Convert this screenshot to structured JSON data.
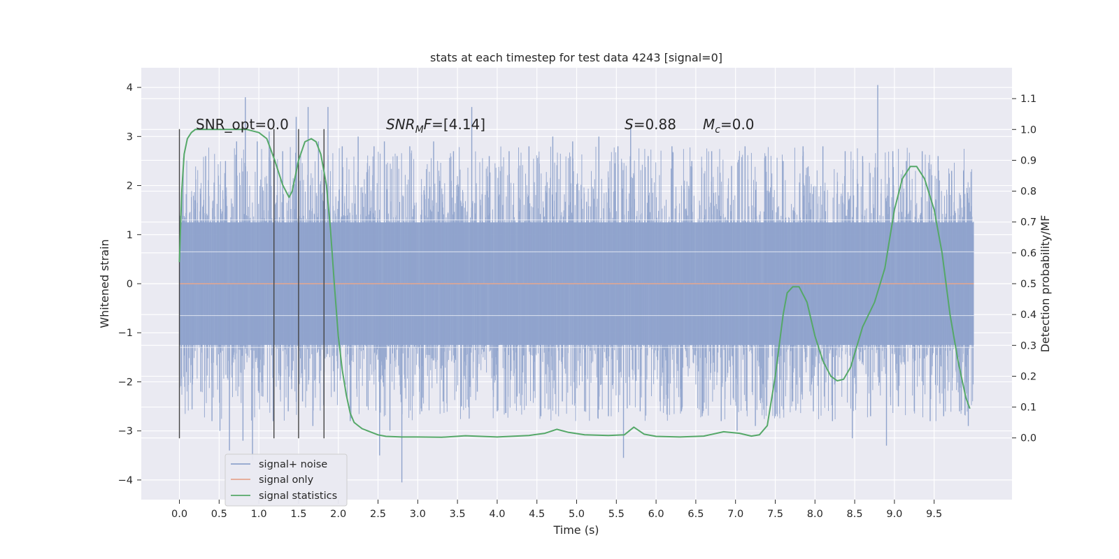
{
  "chart_data": {
    "type": "line",
    "title": "stats at each timestep for test data 4243 [signal=0]",
    "xlabel": "Time (s)",
    "ylabel": "Whitened strain",
    "y2label": "Detection probability/MF",
    "xlim": [
      -0.48,
      10.48
    ],
    "ylim": [
      -4.4,
      4.4
    ],
    "y2lim": [
      -0.2,
      1.2
    ],
    "x_ticks": [
      0.0,
      0.5,
      1.0,
      1.5,
      2.0,
      2.5,
      3.0,
      3.5,
      4.0,
      4.5,
      5.0,
      5.5,
      6.0,
      6.5,
      7.0,
      7.5,
      8.0,
      8.5,
      9.0,
      9.5
    ],
    "x_tick_labels": [
      "0.0",
      "0.5",
      "1.0",
      "1.5",
      "2.0",
      "2.5",
      "3.0",
      "3.5",
      "4.0",
      "4.5",
      "5.0",
      "5.5",
      "6.0",
      "6.5",
      "7.0",
      "7.5",
      "8.0",
      "8.5",
      "9.0",
      "9.5"
    ],
    "y_ticks": [
      -4,
      -3,
      -2,
      -1,
      0,
      1,
      2,
      3,
      4
    ],
    "y_tick_labels": [
      "−4",
      "−3",
      "−2",
      "−1",
      "0",
      "1",
      "2",
      "3",
      "4"
    ],
    "y2_ticks": [
      0.0,
      0.1,
      0.2,
      0.3,
      0.4,
      0.5,
      0.6,
      0.7,
      0.8,
      0.9,
      1.0,
      1.1
    ],
    "y2_tick_labels": [
      "0.0",
      "0.1",
      "0.2",
      "0.3",
      "0.4",
      "0.5",
      "0.6",
      "0.7",
      "0.8",
      "0.9",
      "1.0",
      "1.1"
    ],
    "grid": true,
    "legend_position": "lower-left",
    "annotations": {
      "snr_opt": "SNR_opt=0.0",
      "snr_mf_base": "SNR",
      "snr_mf_sub": "M",
      "snr_mf_tail": "F",
      "snr_mf_value": "=[4.14]",
      "s_sym": "S",
      "s_value": "=0.88",
      "mc_sym": "M",
      "mc_sub": "c",
      "mc_value": "=0.0"
    },
    "vertical_markers_x": [
      0.0,
      1.19,
      1.5,
      1.82
    ],
    "vertical_markers_yrange": [
      -3.15,
      3.15
    ],
    "series": [
      {
        "name": "signal+ noise",
        "axis": "left",
        "style": "noise-envelope",
        "color": "#8fa3cc",
        "x_range": [
          0.0,
          10.0
        ],
        "band": [
          -1.25,
          1.25
        ],
        "peaks": [
          {
            "x": 0.05,
            "v": 1.3
          },
          {
            "x": 0.09,
            "v": -1.8
          },
          {
            "x": 0.2,
            "v": 1.7
          },
          {
            "x": 0.27,
            "v": -2.2
          },
          {
            "x": 0.33,
            "v": 2.6
          },
          {
            "x": 0.41,
            "v": -2.8
          },
          {
            "x": 0.49,
            "v": 2.2
          },
          {
            "x": 0.51,
            "v": -3.0
          },
          {
            "x": 0.58,
            "v": 2.5
          },
          {
            "x": 0.63,
            "v": -3.4
          },
          {
            "x": 0.72,
            "v": 2.9
          },
          {
            "x": 0.8,
            "v": -3.2
          },
          {
            "x": 0.83,
            "v": 3.8
          },
          {
            "x": 0.92,
            "v": -3.6
          },
          {
            "x": 0.98,
            "v": 2.9
          },
          {
            "x": 1.05,
            "v": -2.3
          },
          {
            "x": 1.13,
            "v": 3.1
          },
          {
            "x": 1.18,
            "v": -2.8
          },
          {
            "x": 1.3,
            "v": 2.7
          },
          {
            "x": 1.37,
            "v": -2.6
          },
          {
            "x": 1.47,
            "v": 3.4
          },
          {
            "x": 1.55,
            "v": -2.4
          },
          {
            "x": 1.62,
            "v": 3.6
          },
          {
            "x": 1.68,
            "v": -2.9
          },
          {
            "x": 1.75,
            "v": 2.9
          },
          {
            "x": 1.82,
            "v": -2.5
          },
          {
            "x": 1.87,
            "v": 3.6
          },
          {
            "x": 1.95,
            "v": -2.2
          },
          {
            "x": 2.05,
            "v": 2.8
          },
          {
            "x": 2.15,
            "v": -2.8
          },
          {
            "x": 2.25,
            "v": 3.0
          },
          {
            "x": 2.36,
            "v": -2.5
          },
          {
            "x": 2.45,
            "v": 2.8
          },
          {
            "x": 2.52,
            "v": -3.5
          },
          {
            "x": 2.58,
            "v": 2.9
          },
          {
            "x": 2.65,
            "v": -3.0
          },
          {
            "x": 2.74,
            "v": 2.6
          },
          {
            "x": 2.8,
            "v": -4.05
          },
          {
            "x": 2.9,
            "v": 2.8
          },
          {
            "x": 3.05,
            "v": -2.6
          },
          {
            "x": 3.2,
            "v": 2.9
          },
          {
            "x": 3.32,
            "v": -2.4
          },
          {
            "x": 3.45,
            "v": 2.7
          },
          {
            "x": 3.55,
            "v": -2.5
          },
          {
            "x": 3.68,
            "v": 3.6
          },
          {
            "x": 3.75,
            "v": -2.2
          },
          {
            "x": 3.9,
            "v": 2.6
          },
          {
            "x": 4.0,
            "v": -2.6
          },
          {
            "x": 4.15,
            "v": 2.7
          },
          {
            "x": 4.25,
            "v": -2.3
          },
          {
            "x": 4.4,
            "v": 2.8
          },
          {
            "x": 4.55,
            "v": -2.7
          },
          {
            "x": 4.7,
            "v": 3.0
          },
          {
            "x": 4.82,
            "v": -2.4
          },
          {
            "x": 4.95,
            "v": 2.9
          },
          {
            "x": 5.1,
            "v": -2.6
          },
          {
            "x": 5.28,
            "v": 3.0
          },
          {
            "x": 5.4,
            "v": -2.7
          },
          {
            "x": 5.52,
            "v": 2.8
          },
          {
            "x": 5.59,
            "v": -3.55
          },
          {
            "x": 5.68,
            "v": 3.2
          },
          {
            "x": 5.8,
            "v": -2.6
          },
          {
            "x": 5.9,
            "v": 2.6
          },
          {
            "x": 6.05,
            "v": -2.4
          },
          {
            "x": 6.2,
            "v": 2.8
          },
          {
            "x": 6.32,
            "v": -2.6
          },
          {
            "x": 6.45,
            "v": 2.5
          },
          {
            "x": 6.58,
            "v": -2.7
          },
          {
            "x": 6.7,
            "v": 2.7
          },
          {
            "x": 6.82,
            "v": -2.8
          },
          {
            "x": 6.95,
            "v": 2.4
          },
          {
            "x": 7.02,
            "v": -3.0
          },
          {
            "x": 7.12,
            "v": 2.8
          },
          {
            "x": 7.25,
            "v": -2.9
          },
          {
            "x": 7.38,
            "v": 2.6
          },
          {
            "x": 7.5,
            "v": -2.7
          },
          {
            "x": 7.6,
            "v": 2.5
          },
          {
            "x": 7.72,
            "v": -2.4
          },
          {
            "x": 7.85,
            "v": 2.8
          },
          {
            "x": 7.98,
            "v": -2.6
          },
          {
            "x": 8.1,
            "v": 2.8
          },
          {
            "x": 8.22,
            "v": -2.8
          },
          {
            "x": 8.38,
            "v": 2.7
          },
          {
            "x": 8.47,
            "v": -3.15
          },
          {
            "x": 8.6,
            "v": 2.6
          },
          {
            "x": 8.7,
            "v": -2.7
          },
          {
            "x": 8.79,
            "v": 4.05
          },
          {
            "x": 8.9,
            "v": -3.3
          },
          {
            "x": 8.98,
            "v": 2.7
          },
          {
            "x": 9.05,
            "v": -2.5
          },
          {
            "x": 9.15,
            "v": 2.5
          },
          {
            "x": 9.25,
            "v": -2.6
          },
          {
            "x": 9.35,
            "v": 2.7
          },
          {
            "x": 9.45,
            "v": -2.8
          },
          {
            "x": 9.55,
            "v": 2.6
          },
          {
            "x": 9.62,
            "v": -2.7
          },
          {
            "x": 9.72,
            "v": 2.3
          },
          {
            "x": 9.82,
            "v": -2.6
          },
          {
            "x": 9.87,
            "v": 2.3
          },
          {
            "x": 9.93,
            "v": -2.9
          },
          {
            "x": 9.99,
            "v": 1.0
          }
        ]
      },
      {
        "name": "signal only",
        "axis": "left",
        "color": "#e6a68f",
        "x": [
          0.0,
          10.0
        ],
        "y": [
          0.0,
          0.0
        ]
      },
      {
        "name": "signal statistics",
        "axis": "right",
        "color": "#55a868",
        "x": [
          0.0,
          0.03,
          0.06,
          0.1,
          0.15,
          0.2,
          0.3,
          0.5,
          0.7,
          0.85,
          1.0,
          1.1,
          1.2,
          1.3,
          1.38,
          1.42,
          1.5,
          1.58,
          1.66,
          1.72,
          1.78,
          1.85,
          1.9,
          1.95,
          2.0,
          2.05,
          2.1,
          2.15,
          2.2,
          2.25,
          2.3,
          2.4,
          2.5,
          2.6,
          2.8,
          3.0,
          3.3,
          3.6,
          4.0,
          4.4,
          4.6,
          4.75,
          4.9,
          5.1,
          5.4,
          5.6,
          5.72,
          5.85,
          6.0,
          6.3,
          6.6,
          6.85,
          7.05,
          7.2,
          7.3,
          7.4,
          7.5,
          7.6,
          7.65,
          7.72,
          7.8,
          7.9,
          8.0,
          8.1,
          8.2,
          8.28,
          8.36,
          8.45,
          8.6,
          8.75,
          8.88,
          9.0,
          9.1,
          9.2,
          9.28,
          9.38,
          9.5,
          9.6,
          9.7,
          9.8,
          9.9,
          9.95
        ],
        "y": [
          0.57,
          0.8,
          0.92,
          0.97,
          0.99,
          1.0,
          1.0,
          1.0,
          1.0,
          1.0,
          0.99,
          0.97,
          0.9,
          0.82,
          0.78,
          0.8,
          0.9,
          0.96,
          0.97,
          0.96,
          0.92,
          0.82,
          0.68,
          0.5,
          0.33,
          0.22,
          0.14,
          0.08,
          0.05,
          0.04,
          0.03,
          0.02,
          0.01,
          0.005,
          0.003,
          0.003,
          0.002,
          0.007,
          0.003,
          0.008,
          0.015,
          0.028,
          0.018,
          0.01,
          0.008,
          0.01,
          0.035,
          0.012,
          0.005,
          0.003,
          0.006,
          0.02,
          0.015,
          0.006,
          0.01,
          0.04,
          0.2,
          0.4,
          0.47,
          0.49,
          0.49,
          0.44,
          0.33,
          0.25,
          0.2,
          0.185,
          0.19,
          0.23,
          0.36,
          0.44,
          0.55,
          0.74,
          0.84,
          0.88,
          0.88,
          0.84,
          0.74,
          0.6,
          0.4,
          0.25,
          0.13,
          0.095
        ]
      }
    ]
  }
}
